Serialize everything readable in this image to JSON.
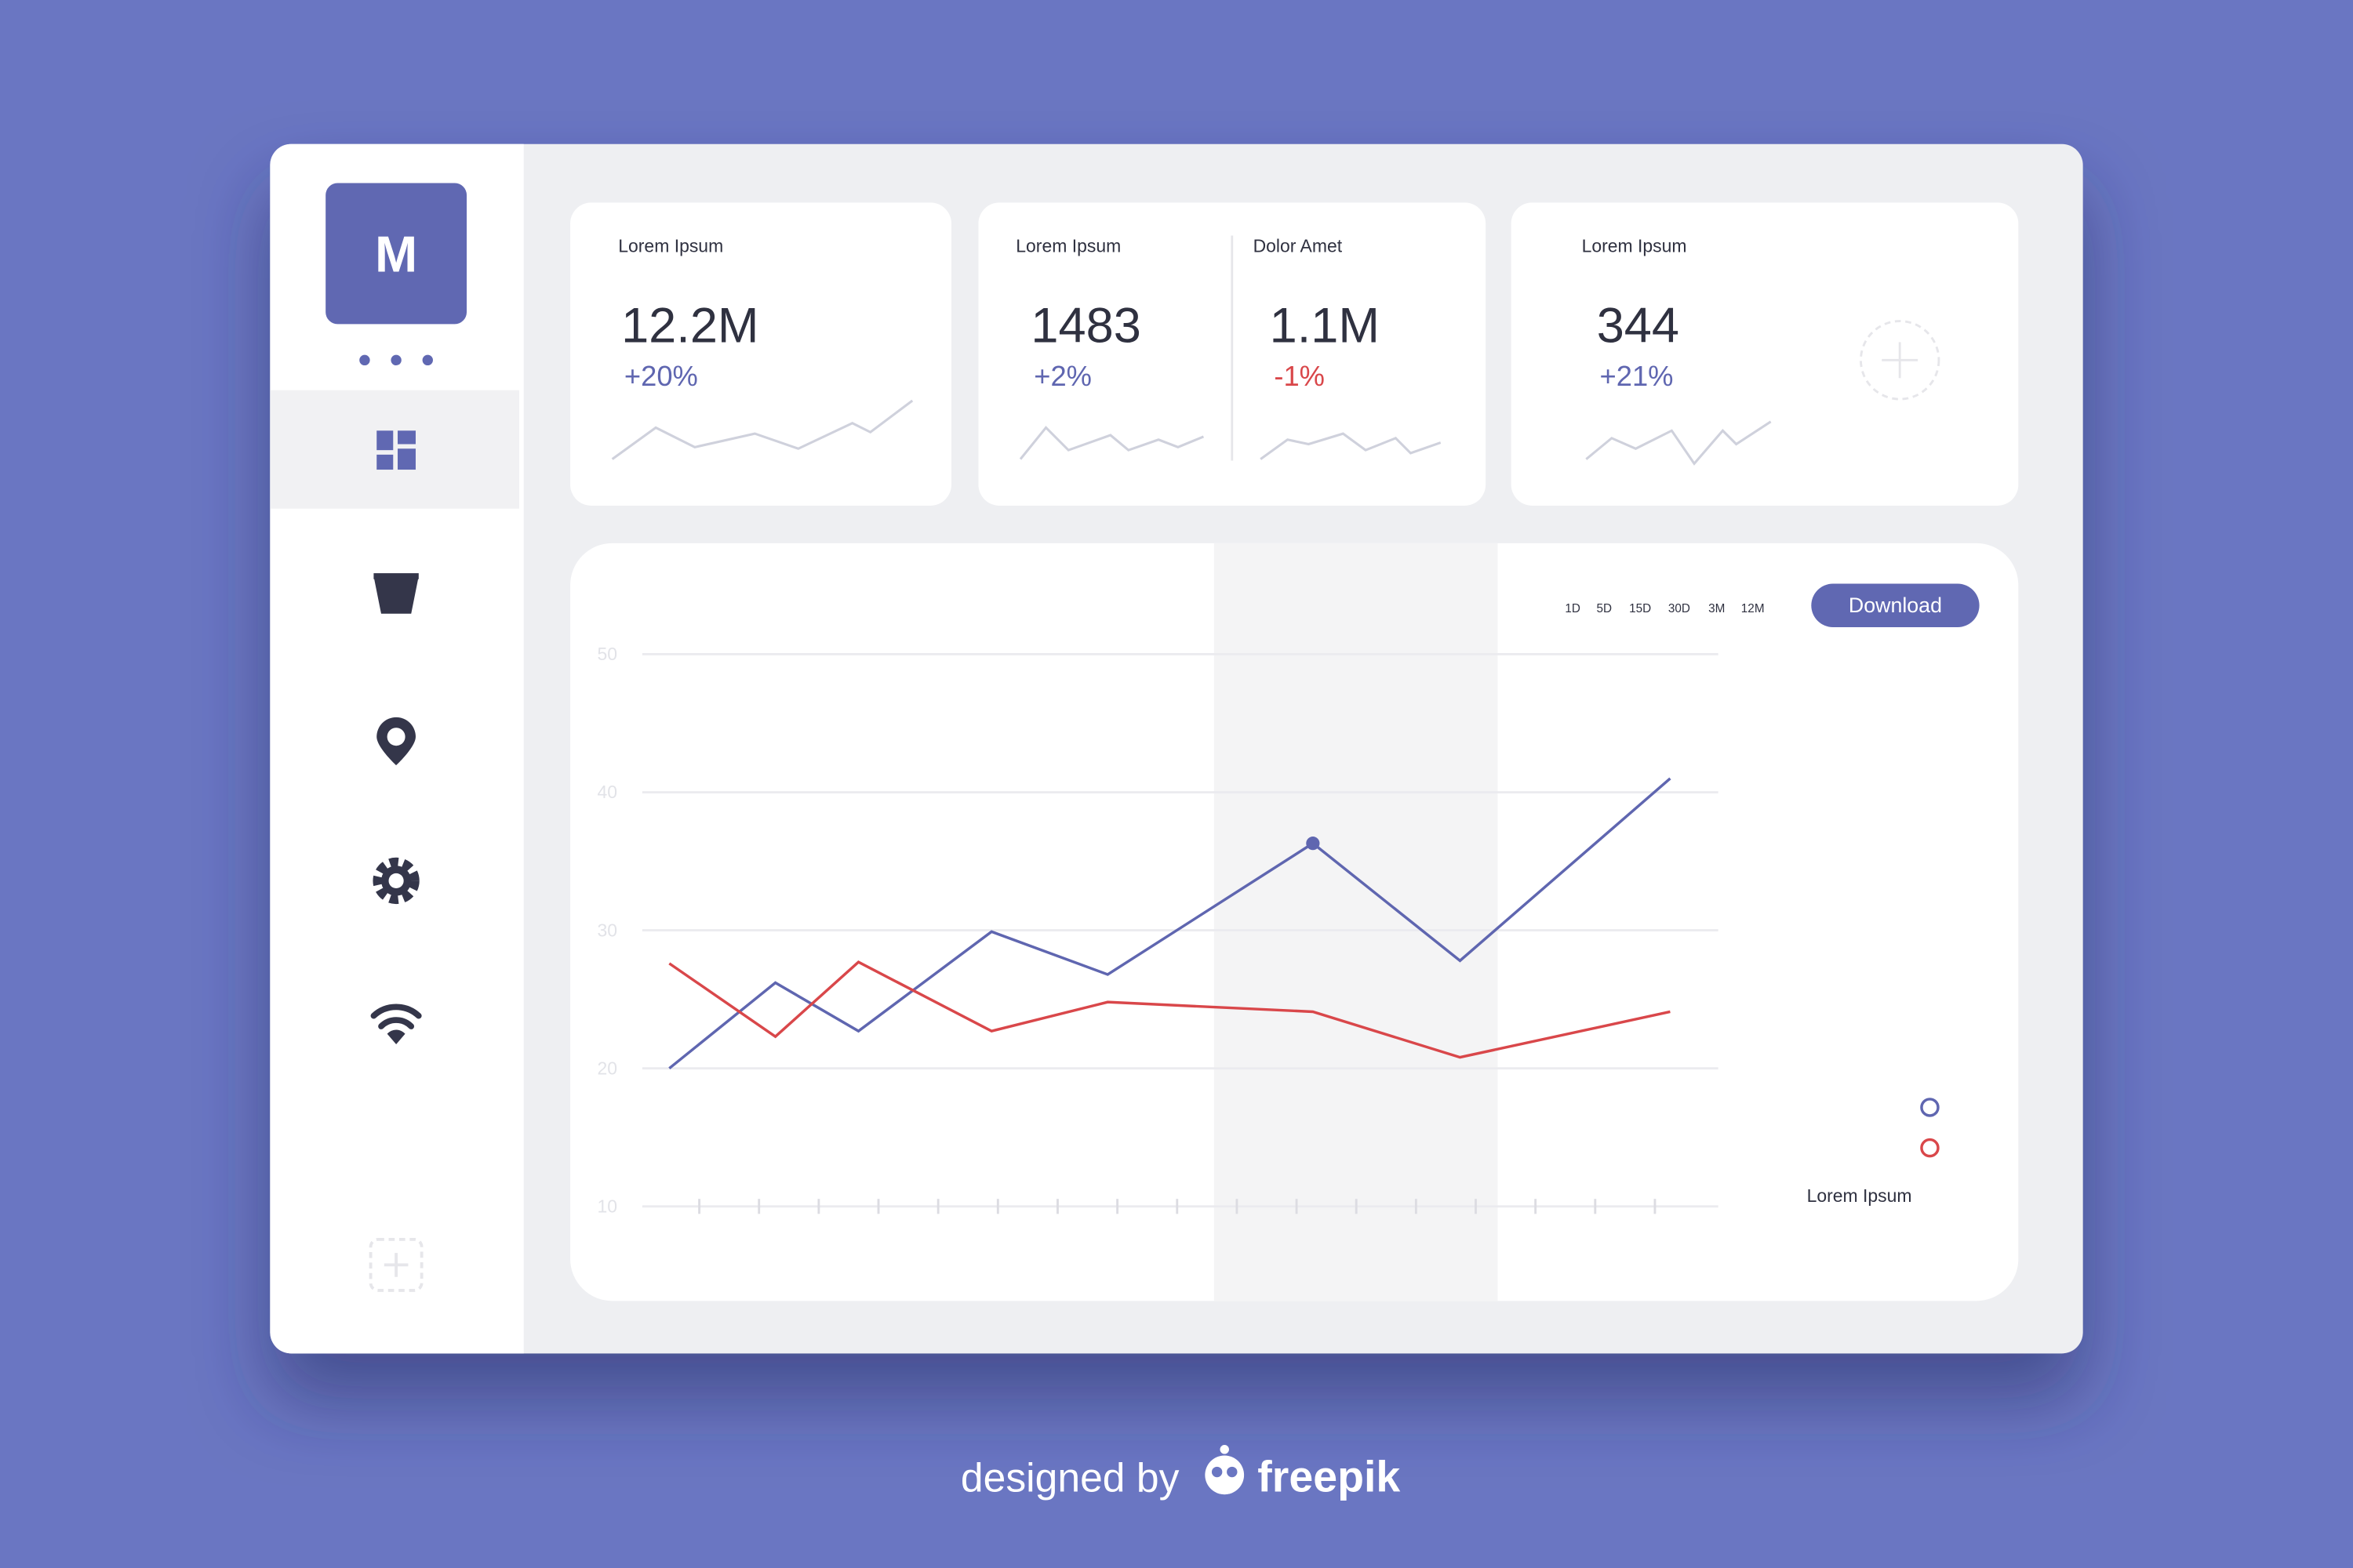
{
  "sidebar": {
    "logo": "M"
  },
  "cards": [
    {
      "metrics": [
        {
          "label": "Lorem Ipsum",
          "value": "12.2M",
          "change": "+20%"
        }
      ]
    },
    {
      "metrics": [
        {
          "label": "Lorem Ipsum",
          "value": "1483",
          "change": "+2%"
        },
        {
          "label": "Dolor Amet",
          "value": "1.1M",
          "change": "-1%"
        }
      ]
    },
    {
      "metrics": [
        {
          "label": "Lorem Ipsum",
          "value": "344",
          "change": "+21%"
        }
      ]
    }
  ],
  "ranges": [
    "1D",
    "5D",
    "15D",
    "30D",
    "3M",
    "12M"
  ],
  "download": "Download",
  "legend_label": "Lorem Ipsum",
  "chart": {
    "type": "line",
    "x": [
      0,
      10.6,
      18.9,
      32.2,
      43.8,
      64.3,
      79,
      100
    ],
    "xlim": [
      -2.7,
      104.8
    ],
    "ylim": [
      10,
      50
    ],
    "yticks": [
      10,
      20,
      30,
      40,
      50
    ],
    "grid": true,
    "highlight_point": 5,
    "series": [
      {
        "color": "#5f66b0",
        "values": [
          20,
          26.2,
          22.7,
          29.9,
          26.8,
          36.3,
          27.8,
          41.0
        ]
      },
      {
        "color": "#d9474a",
        "values": [
          27.6,
          22.3,
          27.7,
          22.7,
          24.8,
          24.1,
          20.8,
          24.1
        ]
      }
    ]
  },
  "footer": {
    "prefix": "designed by",
    "brand": "freepik"
  }
}
